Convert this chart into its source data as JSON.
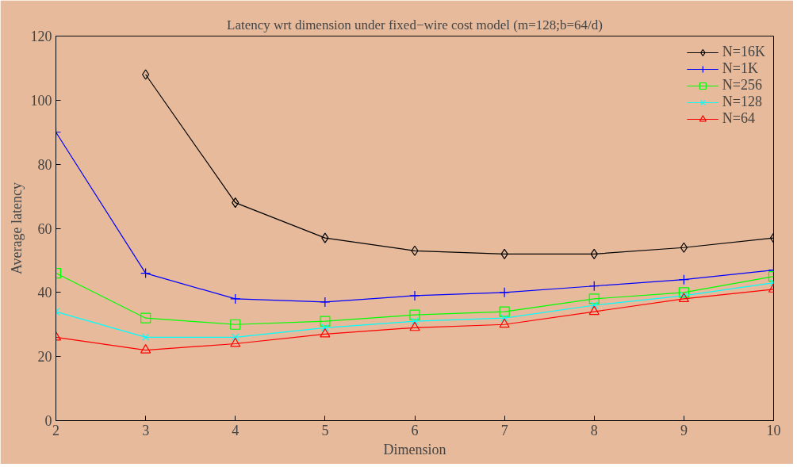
{
  "chart_data": {
    "type": "line",
    "title": "Latency wrt dimension under fixed−wire cost model (m=128;b=64/d)",
    "xlabel": "Dimension",
    "ylabel": "Average latency",
    "x": [
      2,
      3,
      4,
      5,
      6,
      7,
      8,
      9,
      10
    ],
    "series": [
      {
        "name": "N=16K",
        "color": "#000000",
        "marker": "diamond",
        "values": [
          null,
          108,
          68,
          57,
          53,
          52,
          52,
          54,
          57
        ]
      },
      {
        "name": "N=1K",
        "color": "#0000ff",
        "marker": "cross",
        "values": [
          90,
          46,
          38,
          37,
          39,
          40,
          42,
          44,
          47
        ]
      },
      {
        "name": "N=256",
        "color": "#00ff00",
        "marker": "square",
        "values": [
          46,
          32,
          30,
          31,
          33,
          34,
          38,
          40,
          45
        ]
      },
      {
        "name": "N=128",
        "color": "#00ffff",
        "marker": "x",
        "values": [
          34,
          26,
          26,
          29,
          31,
          32,
          36,
          39,
          43
        ]
      },
      {
        "name": "N=64",
        "color": "#ff0000",
        "marker": "triangle",
        "values": [
          26,
          22,
          24,
          27,
          29,
          30,
          34,
          38,
          41
        ]
      }
    ],
    "xlim": [
      2,
      10
    ],
    "ylim": [
      0,
      120
    ],
    "xticks": [
      2,
      3,
      4,
      5,
      6,
      7,
      8,
      9,
      10
    ],
    "yticks": [
      0,
      20,
      40,
      60,
      80,
      100,
      120
    ],
    "grid": false,
    "legend": "top right",
    "line_style": "solid"
  }
}
